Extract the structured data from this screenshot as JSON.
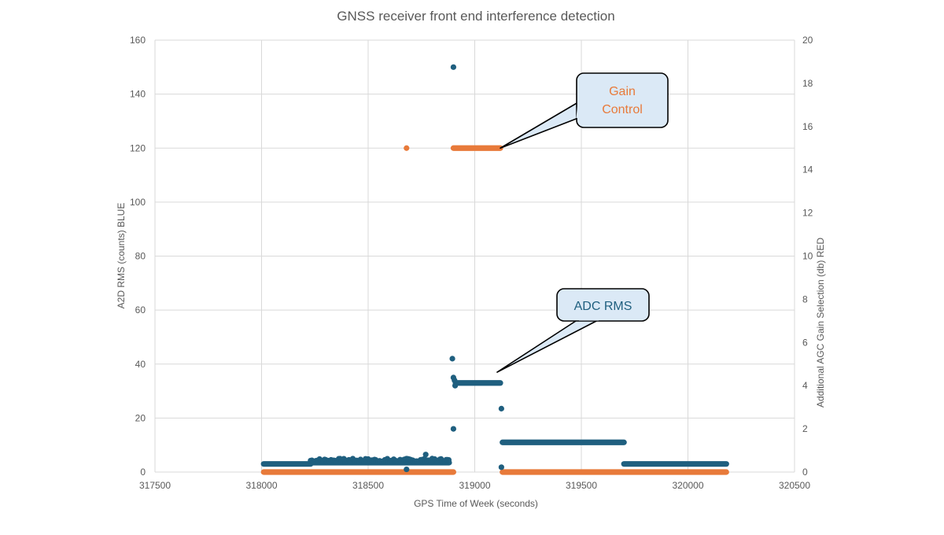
{
  "colors": {
    "series_blue": "#1f5f7f",
    "series_orange": "#e87a3a",
    "grid": "#d9d9d9",
    "text": "#595959",
    "callout_fill": "#dbe9f6"
  },
  "chart_data": {
    "type": "scatter",
    "title": "GNSS receiver front end interference detection",
    "xlabel": "GPS Time of Week (seconds)",
    "ylabel": "A2D RMS (counts) BLUE",
    "y2label": "Additional AGC Gain Selection (db) RED",
    "xlim": [
      317500,
      320500
    ],
    "ylim": [
      0,
      160
    ],
    "y2lim": [
      0,
      20
    ],
    "x_ticks": [
      317500,
      318000,
      318500,
      319000,
      319500,
      320000,
      320500
    ],
    "y_ticks": [
      0,
      20,
      40,
      60,
      80,
      100,
      120,
      140,
      160
    ],
    "y2_ticks": [
      0,
      2,
      4,
      6,
      8,
      10,
      12,
      14,
      16,
      18,
      20
    ],
    "grid": true,
    "legend": "none",
    "series": [
      {
        "axis": "left",
        "color": "#1f5f7f",
        "segments": [
          {
            "x_start": 318010,
            "x_end": 318230,
            "y": 3.0
          },
          {
            "x_start": 318230,
            "x_end": 318880,
            "y": 3.5,
            "jitter": 1.5
          },
          {
            "x_start": 318910,
            "x_end": 319120,
            "y": 33
          },
          {
            "x_start": 319130,
            "x_end": 319700,
            "y": 11
          },
          {
            "x_start": 319700,
            "x_end": 320180,
            "y": 3.0
          }
        ],
        "points": [
          {
            "x": 318900,
            "y": 150
          },
          {
            "x": 318895,
            "y": 42
          },
          {
            "x": 318900,
            "y": 35
          },
          {
            "x": 318905,
            "y": 34
          },
          {
            "x": 318908,
            "y": 32
          },
          {
            "x": 318900,
            "y": 16
          },
          {
            "x": 318770,
            "y": 6.5
          },
          {
            "x": 319125,
            "y": 23.5
          },
          {
            "x": 319125,
            "y": 1.8
          },
          {
            "x": 318680,
            "y": 1.0
          }
        ]
      },
      {
        "axis": "right",
        "color": "#e87a3a",
        "segments": [
          {
            "x_start": 318010,
            "x_end": 318900,
            "y": 0
          },
          {
            "x_start": 318900,
            "x_end": 319120,
            "y": 15
          },
          {
            "x_start": 319130,
            "x_end": 320180,
            "y": 0
          }
        ],
        "points": [
          {
            "x": 318680,
            "y": 15
          }
        ]
      }
    ],
    "annotations": [
      {
        "text_lines": [
          "Gain",
          "Control"
        ],
        "color": "#e87a3a"
      },
      {
        "text_lines": [
          "ADC RMS"
        ],
        "color": "#1f5f7f"
      }
    ]
  }
}
